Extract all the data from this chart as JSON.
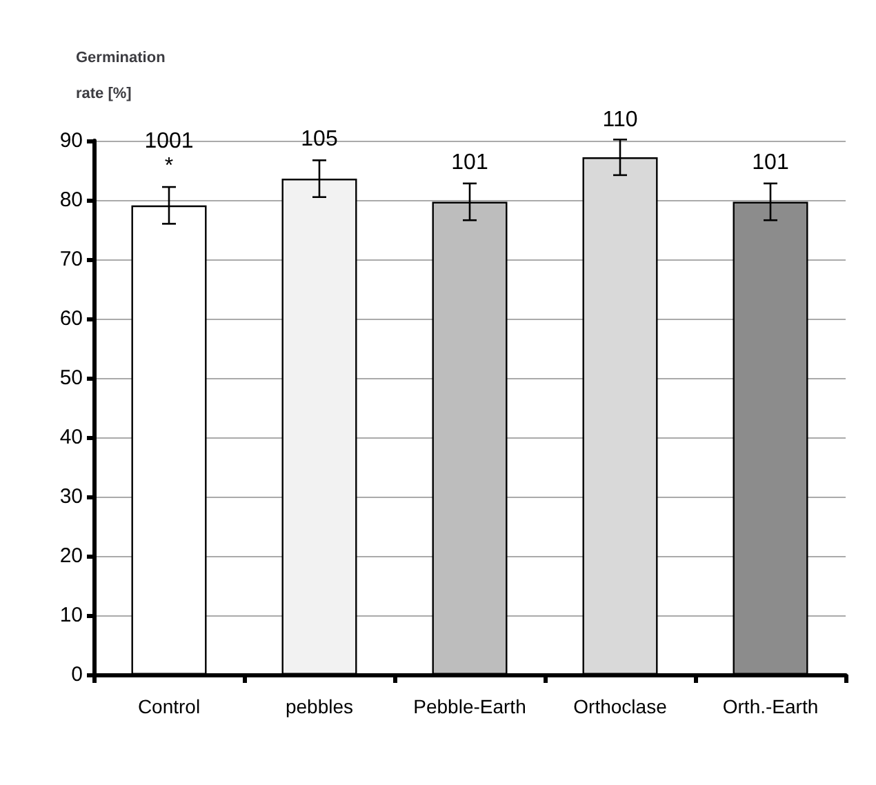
{
  "chart_data": {
    "type": "bar",
    "ylabel": "Germination rate [%]",
    "categories": [
      "Control",
      "pebbles",
      "Pebble-Earth",
      "Orthoclase",
      "Orth.-Earth"
    ],
    "values": [
      79.1,
      83.6,
      79.7,
      87.2,
      79.7
    ],
    "errors": [
      3.1,
      3.1,
      3.1,
      3,
      3.1
    ],
    "annotations": [
      {
        "text": "1001\n*",
        "x": "Control",
        "y": 82.2
      },
      {
        "text": "105",
        "x": "pebbles",
        "y": 86.7
      },
      {
        "text": "101",
        "x": "Pebble-Earth",
        "y": 82.8
      },
      {
        "text": "110",
        "x": "Orthoclase",
        "y": 90
      },
      {
        "text": "101",
        "x": "Orth.-Earth",
        "y": 82.8
      }
    ],
    "colors": [
      "#ffffff",
      "#f2f2f2",
      "#bdbdbd",
      "#d9d9d9",
      "#8c8c8c"
    ],
    "ylim": [
      0,
      90
    ],
    "yticks": [
      0,
      10,
      20,
      30,
      40,
      50,
      60,
      70,
      80,
      90
    ],
    "grid": "y"
  }
}
